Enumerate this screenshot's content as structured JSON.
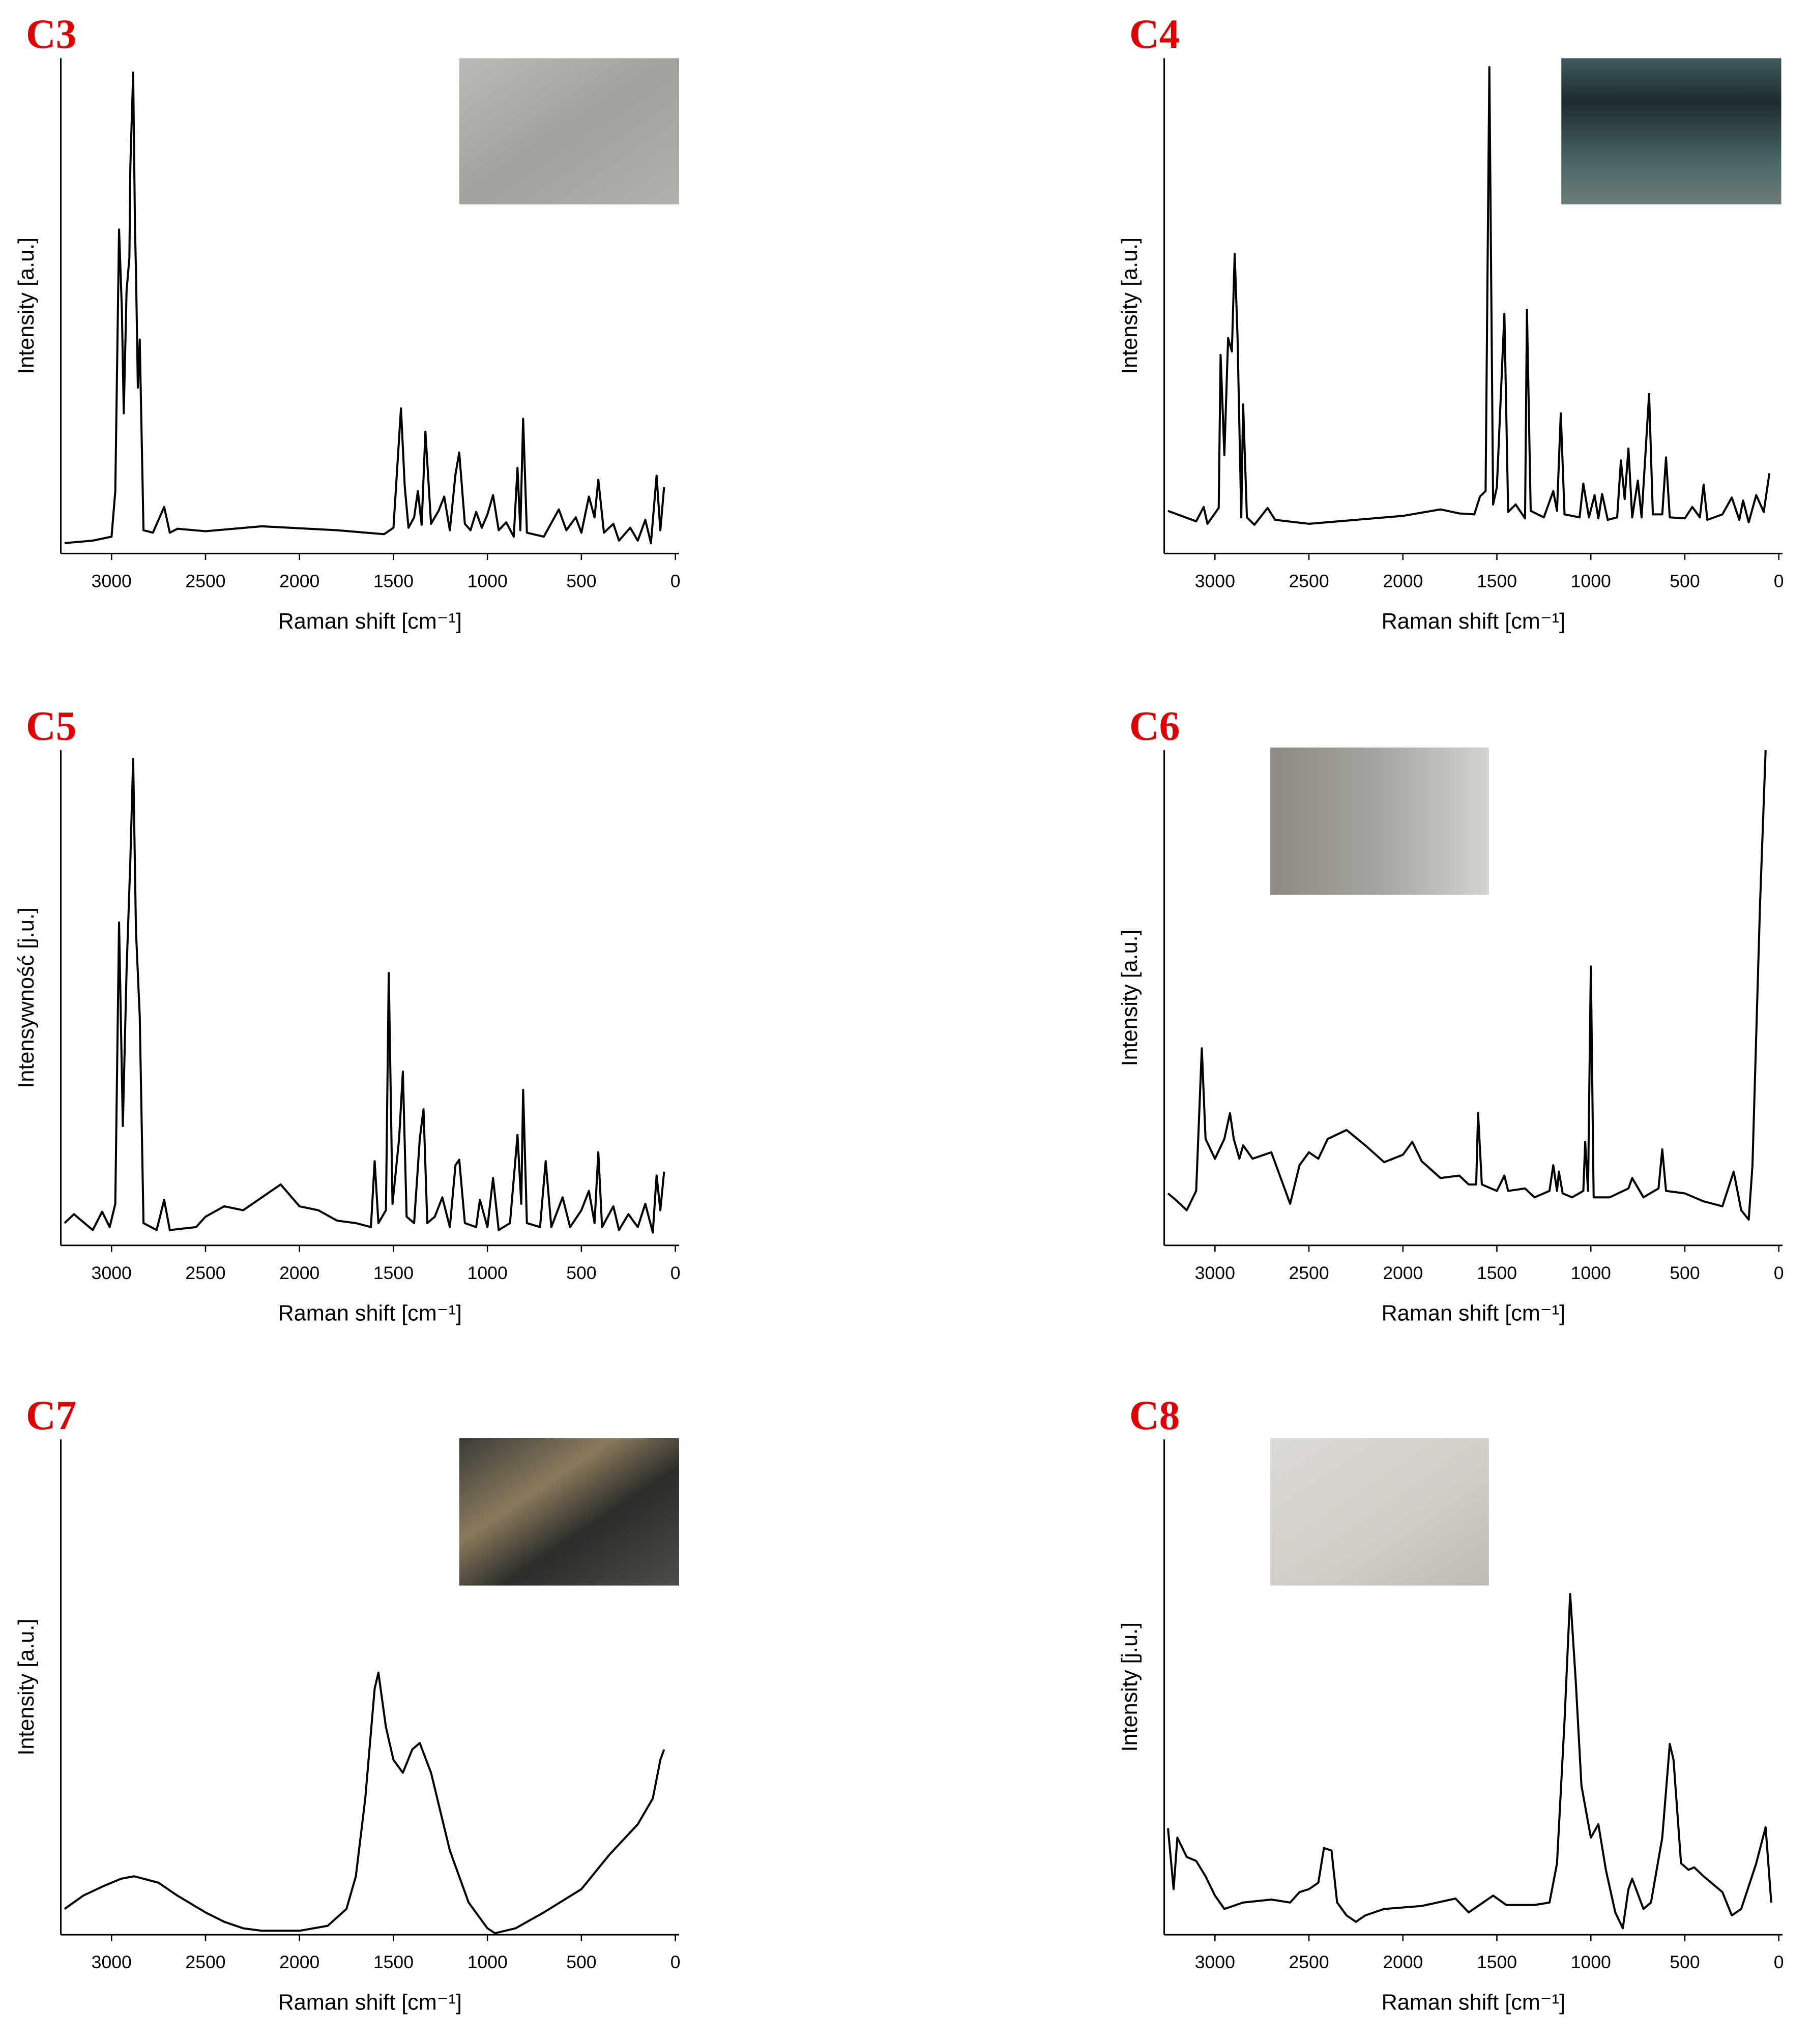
{
  "chart_data": [
    {
      "type": "line",
      "title": "C3",
      "xlabel": "Raman shift [cm⁻¹]",
      "ylabel": "Intensity [a.u.]",
      "color": "#000000",
      "xlim": [
        3270,
        -20
      ],
      "xticks": [
        3000,
        2500,
        2000,
        1500,
        1000,
        500,
        0
      ],
      "ylim": [
        0,
        100
      ],
      "x": [
        3250,
        3100,
        3000,
        2980,
        2960,
        2945,
        2935,
        2920,
        2905,
        2900,
        2885,
        2875,
        2870,
        2860,
        2850,
        2830,
        2780,
        2720,
        2690,
        2650,
        2500,
        2200,
        1800,
        1550,
        1500,
        1460,
        1440,
        1420,
        1390,
        1370,
        1350,
        1330,
        1300,
        1260,
        1230,
        1200,
        1170,
        1150,
        1120,
        1090,
        1060,
        1030,
        1000,
        970,
        940,
        900,
        860,
        840,
        825,
        810,
        790,
        700,
        620,
        580,
        530,
        500,
        460,
        430,
        410,
        380,
        330,
        300,
        240,
        200,
        160,
        130,
        100,
        80,
        60
      ],
      "values": [
        2.1,
        2.6,
        3.4,
        12.6,
        65.4,
        49.2,
        28.3,
        53.1,
        59.7,
        78,
        97.1,
        64.9,
        57.1,
        33.5,
        43.2,
        4.7,
        4.2,
        9.4,
        4.2,
        5,
        4.5,
        5.5,
        4.7,
        3.9,
        5.2,
        29.3,
        13.6,
        5.2,
        7.3,
        12.6,
        5.8,
        24.6,
        6,
        8.6,
        11.5,
        4.7,
        16,
        20.4,
        6,
        4.7,
        8.4,
        5.2,
        7.9,
        11.8,
        4.7,
        6.3,
        3.4,
        17.3,
        4.7,
        27.2,
        4.2,
        3.4,
        8.9,
        4.7,
        7.3,
        4.2,
        11.5,
        7.3,
        14.9,
        4.2,
        6,
        2.6,
        5.2,
        2.6,
        6.8,
        2.1,
        15.7,
        4.7,
        13.4
      ]
    },
    {
      "type": "line",
      "title": "C4",
      "xlabel": "Raman shift [cm⁻¹]",
      "ylabel": "Intensity [a.u.]",
      "color": "#000000",
      "xlim": [
        3270,
        -20
      ],
      "xticks": [
        3000,
        2500,
        2000,
        1500,
        1000,
        500,
        0
      ],
      "ylim": [
        0,
        100
      ],
      "x": [
        3250,
        3100,
        3060,
        3040,
        2980,
        2970,
        2950,
        2930,
        2910,
        2895,
        2880,
        2860,
        2850,
        2830,
        2790,
        2720,
        2680,
        2500,
        2000,
        1800,
        1700,
        1620,
        1590,
        1560,
        1540,
        1520,
        1500,
        1460,
        1440,
        1400,
        1350,
        1340,
        1320,
        1250,
        1200,
        1180,
        1160,
        1140,
        1060,
        1040,
        1010,
        980,
        960,
        940,
        910,
        860,
        840,
        820,
        800,
        780,
        750,
        730,
        690,
        670,
        620,
        600,
        580,
        500,
        460,
        420,
        400,
        380,
        300,
        250,
        210,
        190,
        160,
        120,
        80,
        50
      ],
      "values": [
        8.6,
        6.5,
        9.4,
        6,
        9.2,
        40.1,
        19.9,
        43.5,
        40.8,
        60.5,
        44,
        7.3,
        30.1,
        7.3,
        5.8,
        9.2,
        6.8,
        6,
        7.6,
        8.9,
        8.1,
        7.9,
        11.5,
        12.6,
        98.2,
        9.9,
        13.4,
        48.4,
        8.4,
        9.9,
        7.1,
        49.2,
        8.6,
        7.3,
        12.6,
        8.6,
        28.3,
        7.9,
        7.3,
        14.1,
        7.3,
        11.8,
        7.1,
        12,
        6.8,
        7.3,
        18.8,
        11,
        21.2,
        7.3,
        14.7,
        7.3,
        32.2,
        7.9,
        7.9,
        19.4,
        7.3,
        7.1,
        9.4,
        7.3,
        13.9,
        6.8,
        7.9,
        11.3,
        6.8,
        10.7,
        6.3,
        11.8,
        8.4,
        16.2
      ]
    },
    {
      "type": "line",
      "title": "C5",
      "xlabel": "Raman shift [cm⁻¹]",
      "ylabel": "Intensywność [j.u.]",
      "color": "#000000",
      "xlim": [
        3270,
        -20
      ],
      "xticks": [
        3000,
        2500,
        2000,
        1500,
        1000,
        500,
        0
      ],
      "ylim": [
        0,
        100
      ],
      "x": [
        3250,
        3200,
        3100,
        3050,
        3010,
        2980,
        2960,
        2940,
        2920,
        2900,
        2885,
        2870,
        2850,
        2830,
        2760,
        2720,
        2690,
        2550,
        2500,
        2400,
        2300,
        2200,
        2100,
        2000,
        1900,
        1800,
        1700,
        1620,
        1600,
        1580,
        1540,
        1525,
        1505,
        1470,
        1450,
        1430,
        1390,
        1360,
        1340,
        1320,
        1280,
        1240,
        1200,
        1170,
        1150,
        1120,
        1060,
        1040,
        1000,
        970,
        940,
        880,
        840,
        820,
        810,
        790,
        720,
        690,
        660,
        600,
        560,
        500,
        460,
        430,
        410,
        390,
        330,
        300,
        250,
        200,
        160,
        120,
        100,
        80,
        60
      ],
      "values": [
        4.5,
        6.3,
        3.1,
        6.8,
        3.7,
        8.4,
        65.2,
        24.1,
        55.5,
        77.7,
        98.2,
        63.4,
        46.3,
        4.5,
        3.1,
        9.2,
        3.1,
        3.7,
        5.8,
        7.9,
        7.1,
        9.7,
        12.3,
        7.9,
        7.1,
        5,
        4.5,
        3.7,
        17,
        4.5,
        7.1,
        55,
        8.4,
        21.5,
        35.1,
        5.8,
        4.5,
        21.5,
        27.5,
        4.5,
        5.8,
        9.7,
        3.7,
        16.2,
        17.3,
        4.5,
        3.7,
        9.2,
        3.7,
        13.6,
        3.1,
        4.5,
        22.3,
        8.4,
        31.4,
        4.5,
        3.7,
        17,
        3.7,
        9.7,
        3.7,
        7.1,
        11,
        4.5,
        18.8,
        3.7,
        7.9,
        3.1,
        6.3,
        3.7,
        8.4,
        2.6,
        14.1,
        7.1,
        14.9
      ]
    },
    {
      "type": "line",
      "title": "C6",
      "xlabel": "Raman shift [cm⁻¹]",
      "ylabel": "Intensity [a.u.]",
      "color": "#000000",
      "xlim": [
        3270,
        -20
      ],
      "xticks": [
        3000,
        2500,
        2000,
        1500,
        1000,
        500,
        0
      ],
      "ylim": [
        0,
        100
      ],
      "x": [
        3250,
        3200,
        3150,
        3100,
        3070,
        3050,
        3000,
        2950,
        2920,
        2900,
        2870,
        2850,
        2800,
        2700,
        2650,
        2600,
        2550,
        2500,
        2450,
        2400,
        2300,
        2200,
        2100,
        2000,
        1950,
        1900,
        1800,
        1700,
        1650,
        1610,
        1600,
        1580,
        1500,
        1460,
        1440,
        1350,
        1300,
        1220,
        1200,
        1180,
        1170,
        1150,
        1100,
        1040,
        1030,
        1015,
        1000,
        985,
        900,
        800,
        780,
        720,
        640,
        620,
        600,
        500,
        450,
        400,
        300,
        240,
        200,
        160,
        140,
        100,
        70
      ],
      "values": [
        10.5,
        8.9,
        7.1,
        11,
        39.8,
        21.5,
        17.5,
        21.5,
        26.7,
        21.5,
        17.5,
        20.2,
        17.5,
        18.8,
        13.6,
        8.4,
        16.2,
        18.8,
        17.5,
        21.5,
        23.3,
        20.2,
        16.8,
        18.3,
        20.9,
        17,
        13.6,
        14.1,
        12.3,
        12.3,
        26.7,
        12.3,
        11,
        14.1,
        11,
        11.5,
        9.7,
        11,
        16.2,
        11,
        14.9,
        10.5,
        9.7,
        11,
        20.9,
        11,
        56.3,
        9.7,
        9.7,
        11.5,
        13.6,
        9.7,
        11.5,
        19.4,
        11,
        10.5,
        9.7,
        8.9,
        7.9,
        14.9,
        7.1,
        5.2,
        16.2,
        68.6,
        100
      ]
    },
    {
      "type": "line",
      "title": "C7",
      "xlabel": "Raman shift [cm⁻¹]",
      "ylabel": "Intensity [a.u.]",
      "color": "#000000",
      "xlim": [
        3270,
        -20
      ],
      "xticks": [
        3000,
        2500,
        2000,
        1500,
        1000,
        500,
        0
      ],
      "ylim": [
        0,
        100
      ],
      "x": [
        3250,
        3150,
        3050,
        2950,
        2880,
        2750,
        2650,
        2500,
        2400,
        2300,
        2200,
        2000,
        1850,
        1750,
        1700,
        1650,
        1600,
        1580,
        1540,
        1500,
        1450,
        1400,
        1360,
        1300,
        1200,
        1100,
        1000,
        960,
        850,
        700,
        500,
        350,
        200,
        120,
        80,
        60
      ],
      "values": [
        5.2,
        7.9,
        9.7,
        11.3,
        11.8,
        10.5,
        7.9,
        4.5,
        2.6,
        1.3,
        0.8,
        0.8,
        1.8,
        5.2,
        11.8,
        27.5,
        49.7,
        52.9,
        41.9,
        35.3,
        32.7,
        37.4,
        38.7,
        32.7,
        17,
        6.5,
        1.3,
        0.3,
        1.3,
        4.5,
        9.2,
        16.2,
        22.3,
        27.5,
        35.3,
        37.4
      ]
    },
    {
      "type": "line",
      "title": "C8",
      "xlabel": "Raman shift [cm⁻¹]",
      "ylabel": "Intensity [j.u.]",
      "color": "#000000",
      "xlim": [
        3270,
        -20
      ],
      "xticks": [
        3000,
        2500,
        2000,
        1500,
        1000,
        500,
        0
      ],
      "ylim": [
        0,
        100
      ],
      "x": [
        3250,
        3220,
        3200,
        3150,
        3100,
        3050,
        3000,
        2950,
        2850,
        2700,
        2600,
        2550,
        2500,
        2450,
        2420,
        2380,
        2350,
        2300,
        2250,
        2200,
        2100,
        1900,
        1720,
        1650,
        1520,
        1450,
        1300,
        1220,
        1180,
        1140,
        1110,
        1080,
        1050,
        1000,
        960,
        920,
        870,
        830,
        800,
        780,
        720,
        680,
        620,
        580,
        560,
        520,
        480,
        450,
        400,
        300,
        250,
        200,
        120,
        70,
        40
      ],
      "values": [
        21.5,
        9.2,
        19.6,
        15.7,
        14.9,
        11.8,
        7.9,
        5.2,
        6.5,
        7.1,
        6.5,
        8.6,
        9.2,
        10.5,
        17.5,
        17,
        6.5,
        3.9,
        2.6,
        3.9,
        5.2,
        5.8,
        7.3,
        4.5,
        7.9,
        6,
        6,
        6.5,
        14.4,
        43.2,
        68.8,
        51,
        30.1,
        19.6,
        22.3,
        13.1,
        4.5,
        1.3,
        9.2,
        11.3,
        5.2,
        6.5,
        19.6,
        38.5,
        35.3,
        14.4,
        13.1,
        13.6,
        11.8,
        8.6,
        3.9,
        5.2,
        14.4,
        21.7,
        6.5
      ]
    }
  ]
}
